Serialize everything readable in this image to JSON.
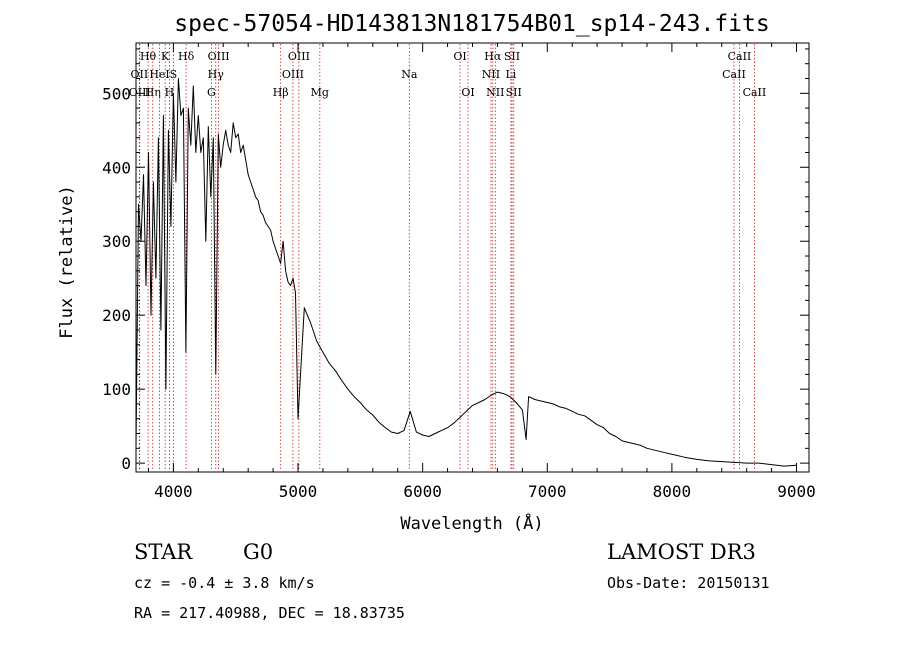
{
  "chart_data": {
    "type": "line",
    "title": "spec-57054-HD143813N181754B01_sp14-243.fits",
    "xlabel": "Wavelength (Å)",
    "ylabel": "Flux (relative)",
    "xlim": [
      3700,
      9100
    ],
    "ylim": [
      -12,
      568
    ],
    "xticks": [
      4000,
      5000,
      6000,
      7000,
      8000,
      9000
    ],
    "yticks": [
      0,
      100,
      200,
      300,
      400,
      500
    ],
    "grid": false,
    "series": [
      {
        "x": [
          3700,
          3720,
          3740,
          3760,
          3780,
          3800,
          3820,
          3840,
          3860,
          3880,
          3900,
          3920,
          3940,
          3960,
          3980,
          4000,
          4020,
          4040,
          4060,
          4080,
          4100,
          4120,
          4140,
          4160,
          4180,
          4200,
          4220,
          4240,
          4260,
          4280,
          4300,
          4320,
          4340,
          4360,
          4380,
          4400,
          4420,
          4440,
          4460,
          4480,
          4500,
          4520,
          4540,
          4560,
          4580,
          4600,
          4620,
          4640,
          4660,
          4680,
          4700,
          4720,
          4740,
          4760,
          4780,
          4800,
          4820,
          4840,
          4860,
          4880,
          4900,
          4920,
          4940,
          4960,
          4980,
          5000,
          5050,
          5100,
          5150,
          5200,
          5250,
          5300,
          5350,
          5400,
          5450,
          5500,
          5550,
          5600,
          5650,
          5700,
          5750,
          5800,
          5850,
          5900,
          5950,
          6000,
          6050,
          6100,
          6150,
          6200,
          6250,
          6300,
          6350,
          6400,
          6450,
          6500,
          6550,
          6600,
          6650,
          6700,
          6750,
          6800,
          6830,
          6850,
          6900,
          6950,
          7000,
          7050,
          7100,
          7150,
          7200,
          7250,
          7300,
          7350,
          7400,
          7450,
          7500,
          7550,
          7600,
          7650,
          7700,
          7750,
          7800,
          7850,
          7900,
          7950,
          8000,
          8100,
          8200,
          8300,
          8400,
          8500,
          8600,
          8700,
          8800,
          8900,
          9000
        ],
        "y": [
          20,
          350,
          300,
          390,
          240,
          420,
          200,
          380,
          250,
          440,
          180,
          470,
          100,
          450,
          320,
          500,
          380,
          520,
          470,
          480,
          150,
          480,
          430,
          510,
          420,
          470,
          420,
          440,
          300,
          455,
          360,
          440,
          120,
          445,
          400,
          430,
          450,
          430,
          420,
          460,
          440,
          445,
          420,
          430,
          410,
          390,
          380,
          370,
          360,
          355,
          340,
          335,
          325,
          320,
          315,
          300,
          290,
          280,
          270,
          300,
          260,
          245,
          240,
          250,
          230,
          60,
          210,
          190,
          165,
          150,
          135,
          125,
          112,
          100,
          90,
          82,
          72,
          65,
          55,
          48,
          42,
          40,
          44,
          70,
          42,
          38,
          36,
          40,
          44,
          48,
          54,
          62,
          70,
          78,
          82,
          86,
          92,
          96,
          94,
          90,
          82,
          72,
          32,
          90,
          86,
          84,
          82,
          80,
          76,
          74,
          70,
          66,
          64,
          58,
          52,
          48,
          40,
          36,
          30,
          28,
          26,
          24,
          20,
          18,
          16,
          14,
          12,
          8,
          5,
          3,
          2,
          1,
          0,
          0,
          -2,
          -4,
          -3
        ]
      }
    ],
    "spectral_lines": [
      {
        "label": "Hθ",
        "x": 3797,
        "row": 0
      },
      {
        "label": "OII",
        "x": 3727,
        "row": 1
      },
      {
        "label": "OIII",
        "x": 3730,
        "row": 2
      },
      {
        "label": "Hη",
        "x": 3835,
        "row": 2
      },
      {
        "label": "K",
        "x": 3934,
        "row": 0
      },
      {
        "label": "HeI",
        "x": 3889,
        "row": 1
      },
      {
        "label": "S",
        "x": 4000,
        "row": 1
      },
      {
        "label": "H",
        "x": 3968,
        "row": 2
      },
      {
        "label": "Hδ",
        "x": 4102,
        "row": 0
      },
      {
        "label": "OIII",
        "x": 4363,
        "row": 0
      },
      {
        "label": "Hγ",
        "x": 4340,
        "row": 1
      },
      {
        "label": "G",
        "x": 4305,
        "row": 2
      },
      {
        "label": "Hβ",
        "x": 4861,
        "row": 2
      },
      {
        "label": "OIII",
        "x": 5007,
        "row": 0
      },
      {
        "label": "OIII",
        "x": 4959,
        "row": 1
      },
      {
        "label": "Mg",
        "x": 5175,
        "row": 2
      },
      {
        "label": "Na",
        "x": 5893,
        "row": 1
      },
      {
        "label": "OI",
        "x": 6300,
        "row": 0
      },
      {
        "label": "OI",
        "x": 6364,
        "row": 2
      },
      {
        "label": "Hα",
        "x": 6563,
        "row": 0
      },
      {
        "label": "NII",
        "x": 6548,
        "row": 1
      },
      {
        "label": "SII",
        "x": 6717,
        "row": 0
      },
      {
        "label": "Li",
        "x": 6708,
        "row": 1
      },
      {
        "label": "NII",
        "x": 6583,
        "row": 2
      },
      {
        "label": "SII",
        "x": 6731,
        "row": 2
      },
      {
        "label": "CaII",
        "x": 8542,
        "row": 0
      },
      {
        "label": "CaII",
        "x": 8498,
        "row": 1
      },
      {
        "label": "CaII",
        "x": 8662,
        "row": 2
      }
    ]
  },
  "footer": {
    "class_label": "STAR",
    "subclass": "G0",
    "survey": "LAMOST DR3",
    "redshift": "cz = -0.4 ± 3.8 km/s",
    "obs_date": "Obs-Date: 20150131",
    "coords": "RA = 217.40988, DEC =  18.83735"
  }
}
